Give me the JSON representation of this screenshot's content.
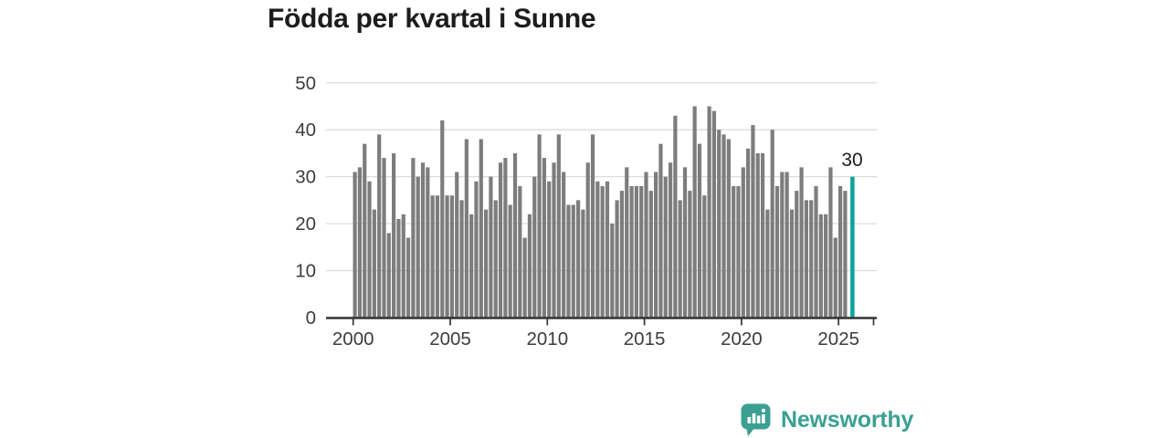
{
  "title": "Födda per kvartal i Sunne",
  "logo": {
    "text": "Newsworthy",
    "icon": "newsworthy-speech-bubble-chart-icon"
  },
  "colors": {
    "bar": "#7d7d7d",
    "highlight": "#0ca39c",
    "axis": "#333333",
    "grid": "#dcdcdc",
    "title_text": "#1c1c1c",
    "tick_text": "#3c3c3c",
    "logo_teal": "#3ba092",
    "background": "#ffffff"
  },
  "chart_data": {
    "type": "bar",
    "title": "Födda per kvartal i Sunne",
    "x_unit": "quarter",
    "start": "2000 Q1",
    "end": "2025 Q3",
    "x_tick_labels": [
      "2000",
      "2005",
      "2010",
      "2015",
      "2020",
      "2025"
    ],
    "y_tick_labels": [
      "0",
      "10",
      "20",
      "30",
      "40",
      "50"
    ],
    "ylim": [
      0,
      50
    ],
    "grid": "horizontal",
    "legend": "none",
    "highlight_index": 102,
    "highlight_label": "30",
    "values": [
      31,
      32,
      37,
      29,
      23,
      39,
      34,
      18,
      35,
      21,
      22,
      17,
      34,
      30,
      33,
      32,
      26,
      26,
      42,
      26,
      26,
      31,
      25,
      38,
      22,
      29,
      38,
      23,
      30,
      25,
      33,
      34,
      24,
      35,
      28,
      17,
      22,
      30,
      39,
      34,
      29,
      33,
      39,
      31,
      24,
      24,
      25,
      23,
      33,
      39,
      29,
      28,
      29,
      20,
      25,
      27,
      32,
      28,
      28,
      28,
      31,
      27,
      31,
      37,
      30,
      33,
      43,
      25,
      32,
      27,
      45,
      37,
      26,
      45,
      44,
      40,
      39,
      38,
      28,
      28,
      32,
      36,
      41,
      35,
      35,
      23,
      40,
      28,
      31,
      31,
      23,
      27,
      32,
      25,
      25,
      28,
      22,
      22,
      32,
      17,
      28,
      27,
      30
    ]
  }
}
